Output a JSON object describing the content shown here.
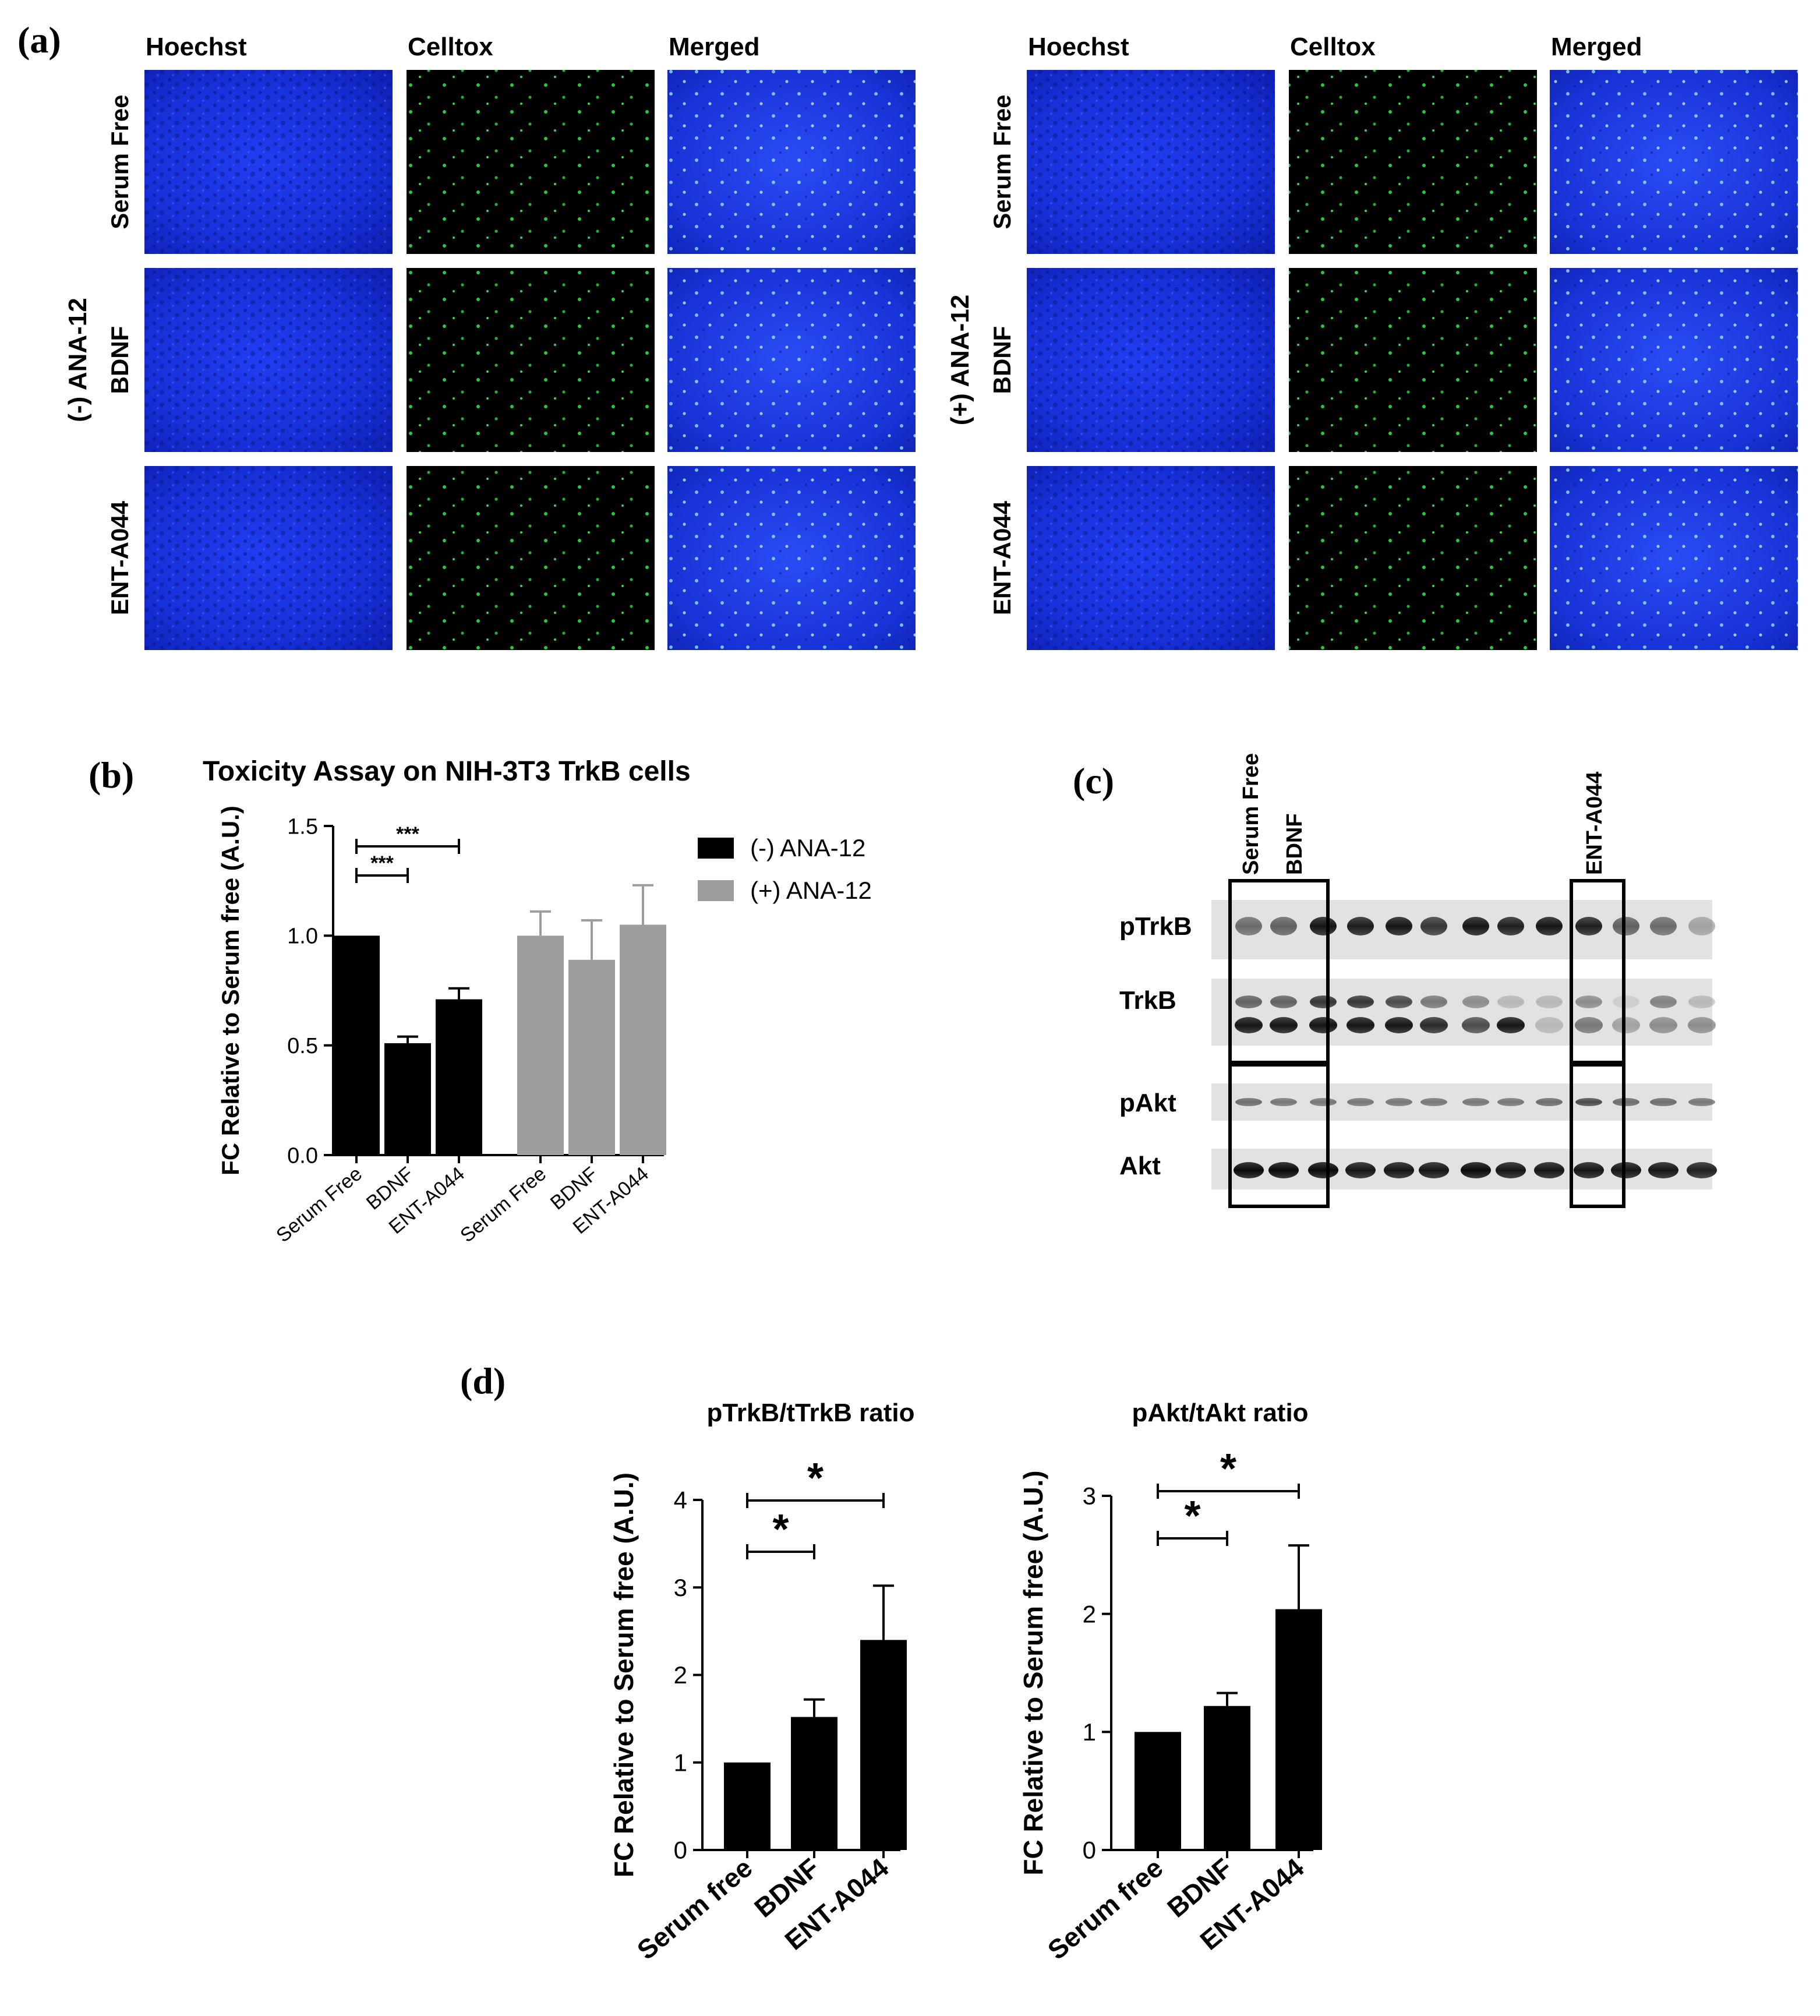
{
  "panel_a": {
    "letter": "(a)",
    "column_headers": [
      "Hoechst",
      "Celltox",
      "Merged"
    ],
    "groups": [
      {
        "label": "(-) ANA-12",
        "row_labels": [
          "Serum Free",
          "BDNF",
          "ENT-A044"
        ]
      },
      {
        "label": "(+) ANA-12",
        "row_labels": [
          "Serum Free",
          "BDNF",
          "ENT-A044"
        ]
      }
    ]
  },
  "panel_b": {
    "letter": "(b)"
  },
  "panel_c": {
    "letter": "(c)",
    "lane_labels": [
      "Serum Free",
      "BDNF",
      "ENT-A044"
    ],
    "row_labels": [
      "pTrkB",
      "TrkB",
      "pAkt",
      "Akt"
    ]
  },
  "panel_d": {
    "letter": "(d)"
  },
  "chart_data": [
    {
      "type": "bar",
      "title": "Toxicity Assay on NIH-3T3 TrkB cells",
      "ylabel": "FC Relative to Serum free (A.U.)",
      "ylim": [
        0,
        1.5
      ],
      "yticks": [
        "0.0",
        "0.5",
        "1.0",
        "1.5"
      ],
      "categories": [
        "Serum Free",
        "BDNF",
        "ENT-A044"
      ],
      "series": [
        {
          "name": "(-) ANA-12",
          "color": "#000000",
          "values": [
            1.0,
            0.51,
            0.71
          ],
          "errors": [
            0.0,
            0.03,
            0.05
          ]
        },
        {
          "name": "(+) ANA-12",
          "color": "#9d9d9f",
          "values": [
            1.0,
            0.89,
            1.05
          ],
          "errors": [
            0.11,
            0.18,
            0.18
          ]
        }
      ],
      "legend_position": "top-right",
      "significance": [
        {
          "between": [
            "Serum Free",
            "BDNF"
          ],
          "label": "***"
        },
        {
          "between": [
            "Serum Free",
            "ENT-A044"
          ],
          "label": "***"
        }
      ]
    },
    {
      "type": "bar",
      "title": "pTrkB/tTrkB ratio",
      "ylabel": "FC Relative to Serum free (A.U.)",
      "ylim": [
        0,
        4
      ],
      "yticks": [
        "0",
        "1",
        "2",
        "3",
        "4"
      ],
      "categories": [
        "Serum free",
        "BDNF",
        "ENT-A044"
      ],
      "values": [
        1.0,
        1.52,
        2.4
      ],
      "errors": [
        0.0,
        0.2,
        0.62
      ],
      "significance": [
        {
          "between": [
            "Serum free",
            "BDNF"
          ],
          "label": "*"
        },
        {
          "between": [
            "Serum free",
            "ENT-A044"
          ],
          "label": "*"
        }
      ]
    },
    {
      "type": "bar",
      "title": "pAkt/tAkt ratio",
      "ylabel": "FC Relative to Serum free (A.U.)",
      "ylim": [
        0,
        3
      ],
      "yticks": [
        "0",
        "1",
        "2",
        "3"
      ],
      "categories": [
        "Serum free",
        "BDNF",
        "ENT-A044"
      ],
      "values": [
        1.0,
        1.22,
        2.04
      ],
      "errors": [
        0.0,
        0.11,
        0.54
      ],
      "significance": [
        {
          "between": [
            "Serum free",
            "BDNF"
          ],
          "label": "*"
        },
        {
          "between": [
            "Serum free",
            "ENT-A044"
          ],
          "label": "*"
        }
      ]
    }
  ]
}
